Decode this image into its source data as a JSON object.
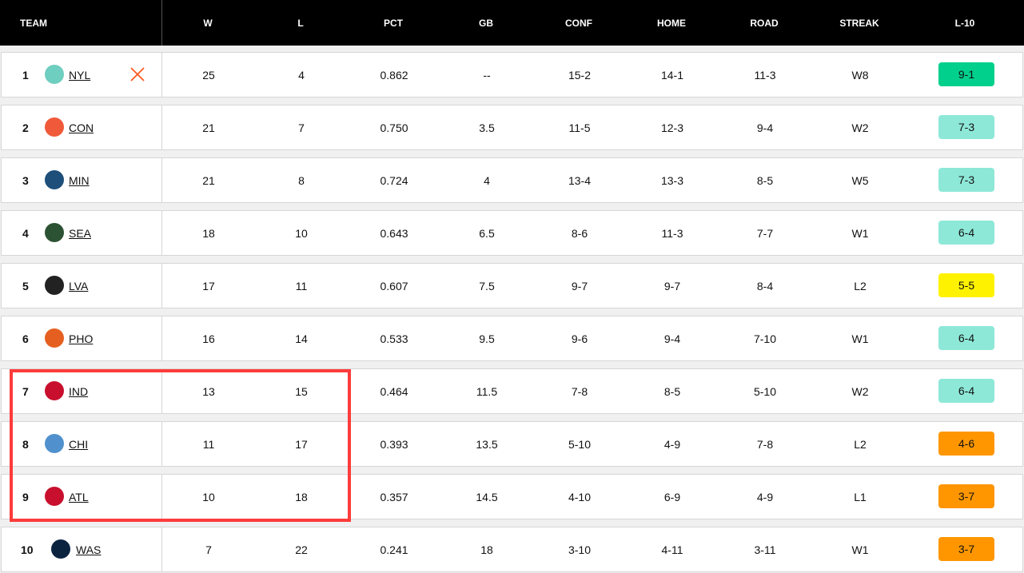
{
  "headers": {
    "team": "TEAM",
    "w": "W",
    "l": "L",
    "pct": "PCT",
    "gb": "GB",
    "conf": "CONF",
    "home": "HOME",
    "road": "ROAD",
    "streak": "STREAK",
    "l10": "L-10"
  },
  "colors": {
    "l10_hot": "#00d08c",
    "l10_good": "#8ee8d8",
    "l10_even": "#fff200",
    "l10_bad": "#ff9600",
    "highlight": "#ff3b3b",
    "clinched_mark": "#ff5a1f"
  },
  "rows": [
    {
      "rank": "1",
      "team": "NYL",
      "logo": "liberty-logo",
      "logo_color": "#6ecebf",
      "clinched": true,
      "w": "25",
      "l": "4",
      "pct": "0.862",
      "gb": "--",
      "conf": "15-2",
      "home": "14-1",
      "road": "11-3",
      "streak": "W8",
      "l10": "9-1",
      "l10_color": "#00d08c"
    },
    {
      "rank": "2",
      "team": "CON",
      "logo": "sun-logo",
      "logo_color": "#f05a3a",
      "w": "21",
      "l": "7",
      "pct": "0.750",
      "gb": "3.5",
      "conf": "11-5",
      "home": "12-3",
      "road": "9-4",
      "streak": "W2",
      "l10": "7-3",
      "l10_color": "#8ee8d8"
    },
    {
      "rank": "3",
      "team": "MIN",
      "logo": "lynx-logo",
      "logo_color": "#1d4f7a",
      "w": "21",
      "l": "8",
      "pct": "0.724",
      "gb": "4",
      "conf": "13-4",
      "home": "13-3",
      "road": "8-5",
      "streak": "W5",
      "l10": "7-3",
      "l10_color": "#8ee8d8"
    },
    {
      "rank": "4",
      "team": "SEA",
      "logo": "storm-logo",
      "logo_color": "#2c5234",
      "w": "18",
      "l": "10",
      "pct": "0.643",
      "gb": "6.5",
      "conf": "8-6",
      "home": "11-3",
      "road": "7-7",
      "streak": "W1",
      "l10": "6-4",
      "l10_color": "#8ee8d8"
    },
    {
      "rank": "5",
      "team": "LVA",
      "logo": "aces-logo",
      "logo_color": "#222222",
      "w": "17",
      "l": "11",
      "pct": "0.607",
      "gb": "7.5",
      "conf": "9-7",
      "home": "9-7",
      "road": "8-4",
      "streak": "L2",
      "l10": "5-5",
      "l10_color": "#fff200"
    },
    {
      "rank": "6",
      "team": "PHO",
      "logo": "mercury-logo",
      "logo_color": "#e56020",
      "w": "16",
      "l": "14",
      "pct": "0.533",
      "gb": "9.5",
      "conf": "9-6",
      "home": "9-4",
      "road": "7-10",
      "streak": "W1",
      "l10": "6-4",
      "l10_color": "#8ee8d8"
    },
    {
      "rank": "7",
      "team": "IND",
      "logo": "fever-logo",
      "logo_color": "#c8102e",
      "w": "13",
      "l": "15",
      "pct": "0.464",
      "gb": "11.5",
      "conf": "7-8",
      "home": "8-5",
      "road": "5-10",
      "streak": "W2",
      "l10": "6-4",
      "l10_color": "#8ee8d8"
    },
    {
      "rank": "8",
      "team": "CHI",
      "logo": "sky-logo",
      "logo_color": "#5091cd",
      "w": "11",
      "l": "17",
      "pct": "0.393",
      "gb": "13.5",
      "conf": "5-10",
      "home": "4-9",
      "road": "7-8",
      "streak": "L2",
      "l10": "4-6",
      "l10_color": "#ff9600"
    },
    {
      "rank": "9",
      "team": "ATL",
      "logo": "dream-logo",
      "logo_color": "#c8102e",
      "w": "10",
      "l": "18",
      "pct": "0.357",
      "gb": "14.5",
      "conf": "4-10",
      "home": "6-9",
      "road": "4-9",
      "streak": "L1",
      "l10": "3-7",
      "l10_color": "#ff9600"
    },
    {
      "rank": "10",
      "team": "WAS",
      "logo": "mystics-logo",
      "logo_color": "#0c2340",
      "w": "7",
      "l": "22",
      "pct": "0.241",
      "gb": "18",
      "conf": "3-10",
      "home": "4-11",
      "road": "3-11",
      "streak": "W1",
      "l10": "3-7",
      "l10_color": "#ff9600"
    }
  ]
}
